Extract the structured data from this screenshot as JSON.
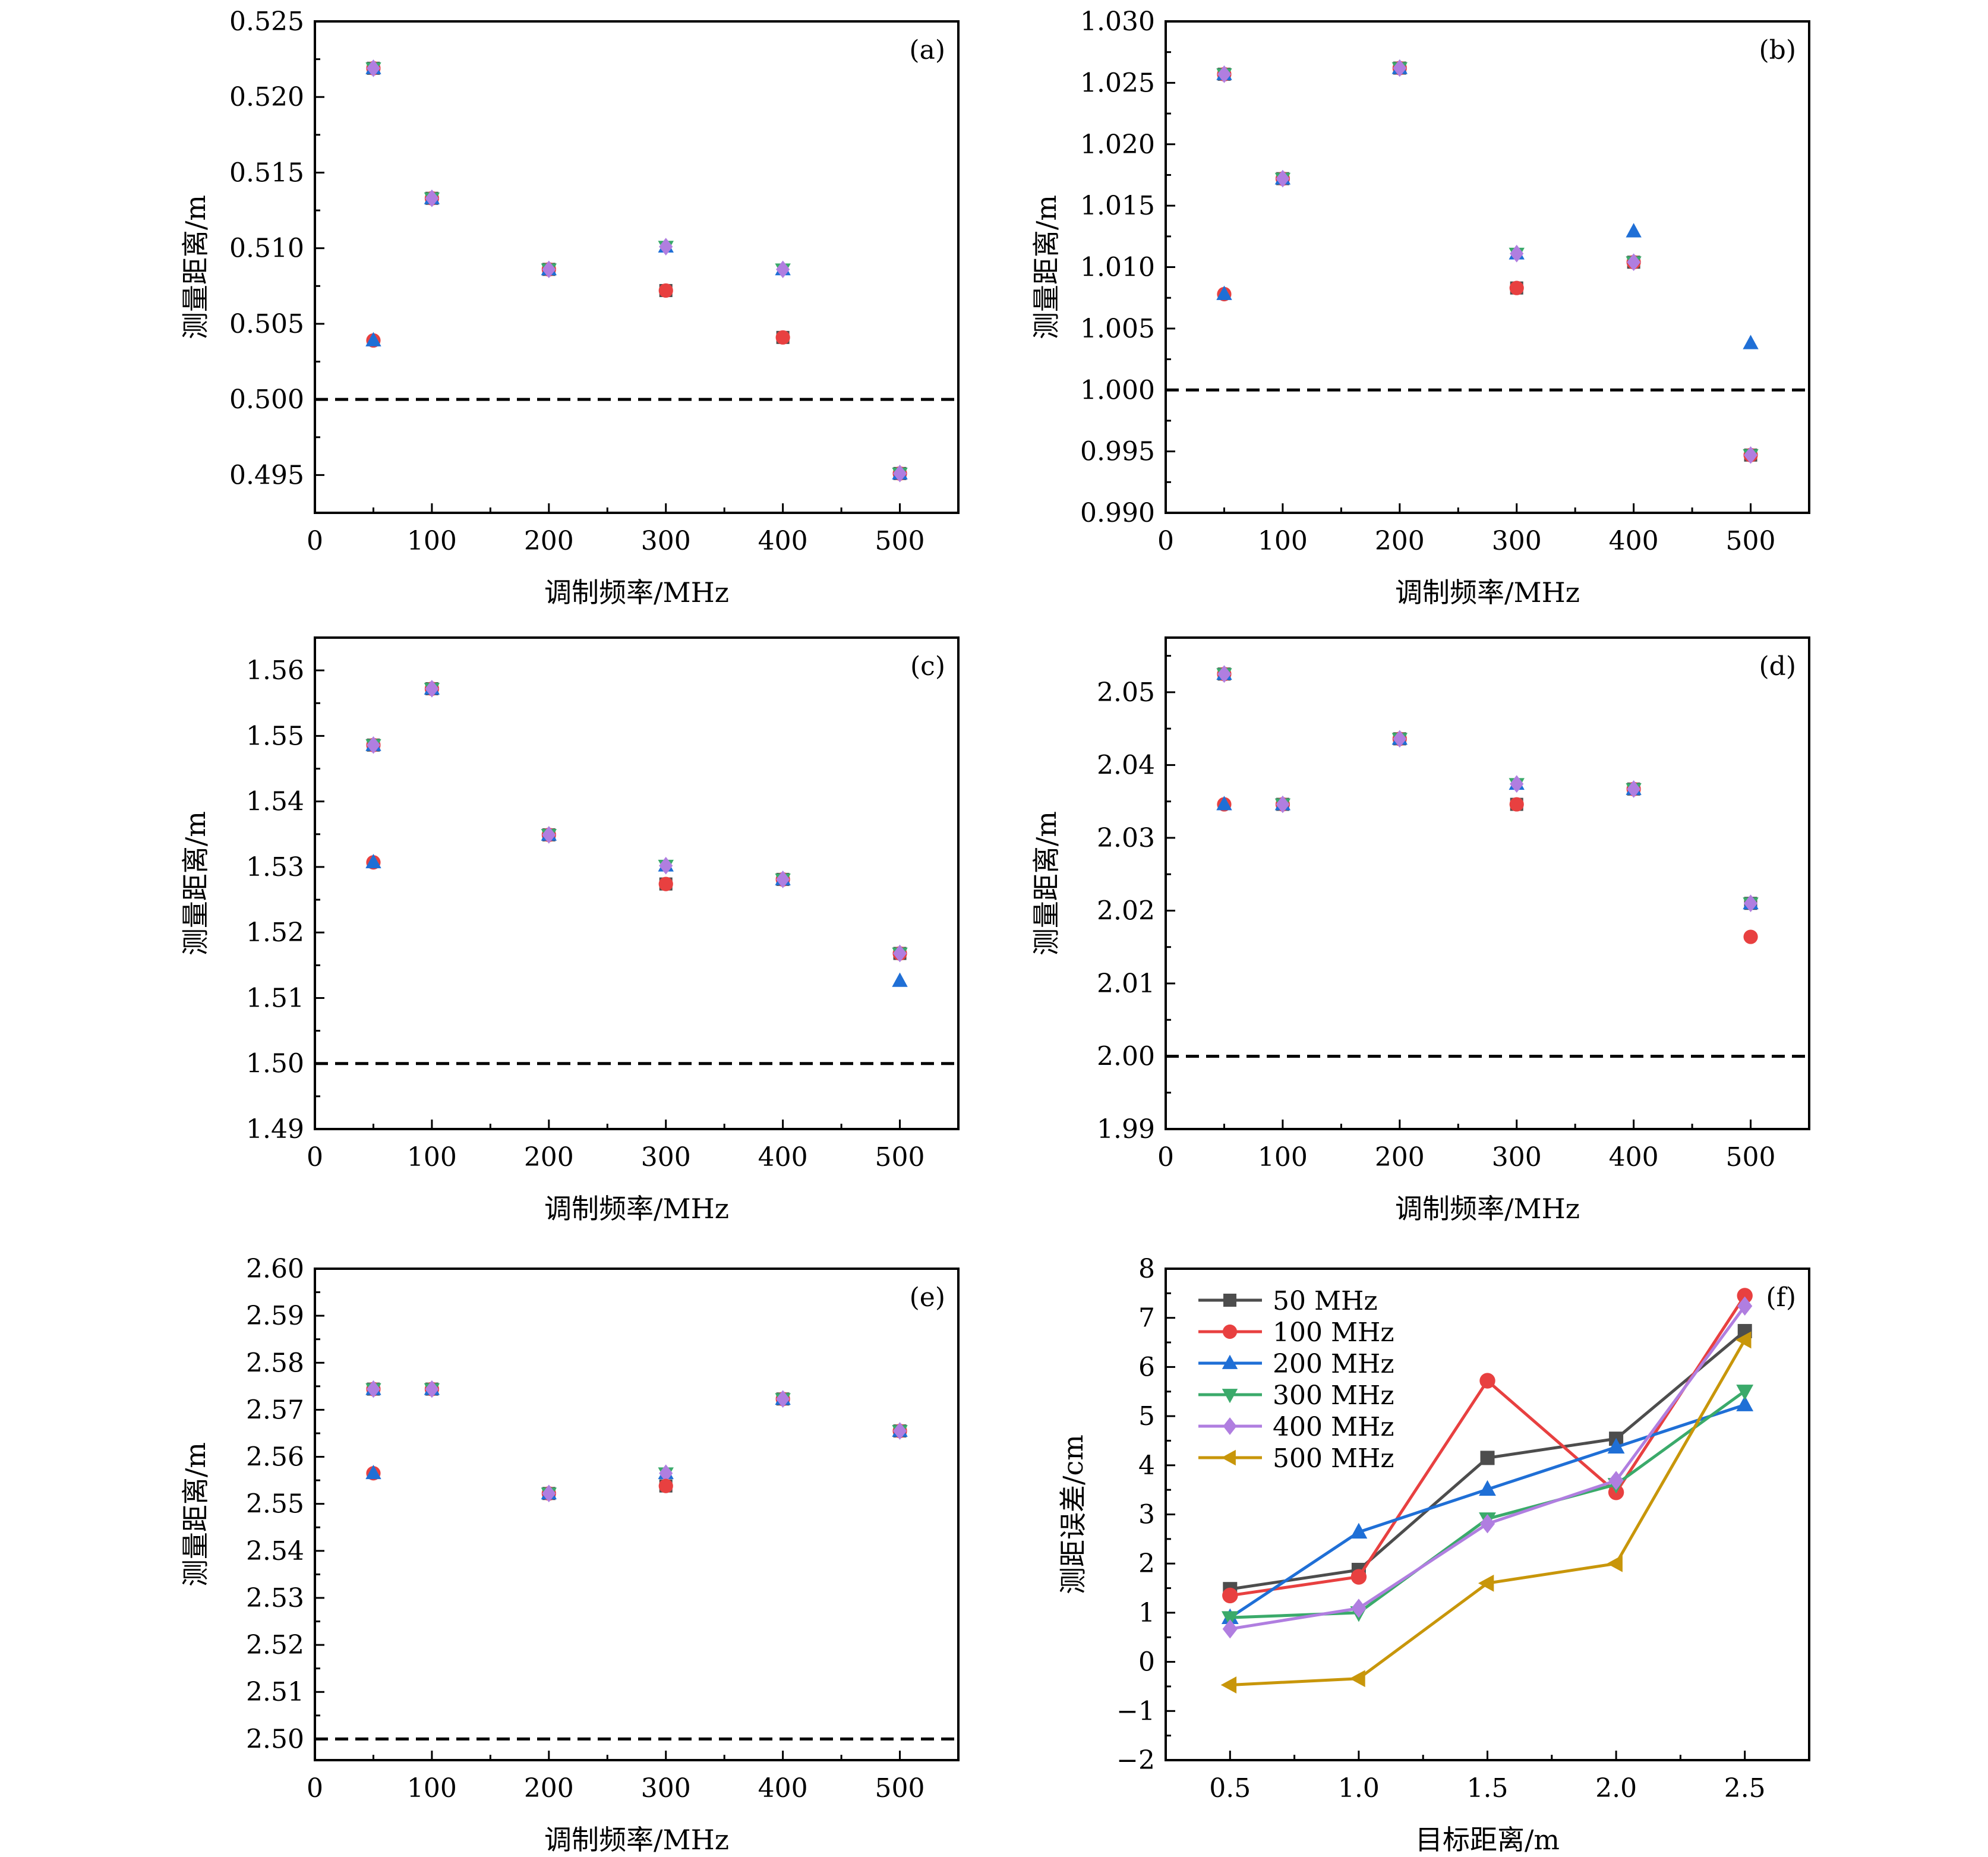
{
  "figure": {
    "marker_colors": {
      "50 MHz": "#4d4d4d",
      "100 MHz": "#e84040",
      "200 MHz": "#1f6fd6",
      "300 MHz": "#3aaa6a",
      "400 MHz": "#b07ee0",
      "500 MHz": "#c8960a"
    },
    "reference_line_color": "#000000"
  },
  "chart_data": [
    {
      "id": "a",
      "type": "scatter",
      "tag": "(a)",
      "xlabel": "调制频率/MHz",
      "ylabel": "测量距离/m",
      "xlim": [
        0,
        550
      ],
      "ylim": [
        0.4925,
        0.525
      ],
      "xticks": [
        0,
        100,
        200,
        300,
        400,
        500
      ],
      "xtick_labels": [
        "0",
        "100",
        "200",
        "300",
        "400",
        "500"
      ],
      "yticks": [
        0.495,
        0.5,
        0.505,
        0.51,
        0.515,
        0.52,
        0.525
      ],
      "ytick_labels": [
        "0.495",
        "0.500",
        "0.505",
        "0.510",
        "0.515",
        "0.520",
        "0.525"
      ],
      "reference_y": 0.5,
      "points": [
        {
          "x": 50,
          "y": 0.5219,
          "markers": [
            "square",
            "circle",
            "triangle-up",
            "triangle-down",
            "diamond"
          ]
        },
        {
          "x": 50,
          "y": 0.5039,
          "markers": [
            "circle",
            "triangle-up"
          ]
        },
        {
          "x": 100,
          "y": 0.5133,
          "markers": [
            "square",
            "circle",
            "triangle-up",
            "triangle-down",
            "diamond"
          ]
        },
        {
          "x": 200,
          "y": 0.5086,
          "markers": [
            "square",
            "circle",
            "triangle-up",
            "triangle-down",
            "diamond"
          ]
        },
        {
          "x": 300,
          "y": 0.5101,
          "markers": [
            "triangle-up",
            "triangle-down",
            "diamond"
          ]
        },
        {
          "x": 300,
          "y": 0.5072,
          "markers": [
            "square",
            "circle"
          ]
        },
        {
          "x": 400,
          "y": 0.5086,
          "markers": [
            "triangle-up",
            "triangle-down",
            "diamond"
          ]
        },
        {
          "x": 400,
          "y": 0.5041,
          "markers": [
            "square",
            "circle"
          ]
        },
        {
          "x": 500,
          "y": 0.4951,
          "markers": [
            "square",
            "circle",
            "triangle-up",
            "triangle-down",
            "diamond"
          ]
        }
      ]
    },
    {
      "id": "b",
      "type": "scatter",
      "tag": "(b)",
      "xlabel": "调制频率/MHz",
      "ylabel": "测量距离/m",
      "xlim": [
        0,
        550
      ],
      "ylim": [
        0.99,
        1.03
      ],
      "xticks": [
        0,
        100,
        200,
        300,
        400,
        500
      ],
      "xtick_labels": [
        "0",
        "100",
        "200",
        "300",
        "400",
        "500"
      ],
      "yticks": [
        0.99,
        0.995,
        1.0,
        1.005,
        1.01,
        1.015,
        1.02,
        1.025,
        1.03
      ],
      "ytick_labels": [
        "0.990",
        "0.995",
        "1.000",
        "1.005",
        "1.010",
        "1.015",
        "1.020",
        "1.025",
        "1.030"
      ],
      "reference_y": 1.0,
      "points": [
        {
          "x": 50,
          "y": 1.0257,
          "markers": [
            "square",
            "circle",
            "triangle-up",
            "triangle-down",
            "diamond"
          ]
        },
        {
          "x": 50,
          "y": 1.0078,
          "markers": [
            "circle",
            "triangle-up"
          ]
        },
        {
          "x": 100,
          "y": 1.0172,
          "markers": [
            "square",
            "circle",
            "triangle-up",
            "triangle-down",
            "diamond"
          ]
        },
        {
          "x": 200,
          "y": 1.0262,
          "markers": [
            "square",
            "circle",
            "triangle-up",
            "triangle-down",
            "diamond"
          ]
        },
        {
          "x": 300,
          "y": 1.0111,
          "markers": [
            "triangle-up",
            "triangle-down",
            "diamond"
          ]
        },
        {
          "x": 300,
          "y": 1.0083,
          "markers": [
            "square",
            "circle"
          ]
        },
        {
          "x": 400,
          "y": 1.0129,
          "markers": [
            "triangle-up"
          ]
        },
        {
          "x": 400,
          "y": 1.0104,
          "markers": [
            "square",
            "circle",
            "triangle-down",
            "diamond"
          ]
        },
        {
          "x": 500,
          "y": 1.0038,
          "markers": [
            "triangle-up"
          ]
        },
        {
          "x": 500,
          "y": 0.9947,
          "markers": [
            "square",
            "circle",
            "triangle-down",
            "diamond"
          ]
        }
      ]
    },
    {
      "id": "c",
      "type": "scatter",
      "tag": "(c)",
      "xlabel": "调制频率/MHz",
      "ylabel": "测量距离/m",
      "xlim": [
        0,
        550
      ],
      "ylim": [
        1.49,
        1.565
      ],
      "xticks": [
        0,
        100,
        200,
        300,
        400,
        500
      ],
      "xtick_labels": [
        "0",
        "100",
        "200",
        "300",
        "400",
        "500"
      ],
      "yticks": [
        1.49,
        1.5,
        1.51,
        1.52,
        1.53,
        1.54,
        1.55,
        1.56
      ],
      "ytick_labels": [
        "1.49",
        "1.50",
        "1.51",
        "1.52",
        "1.53",
        "1.54",
        "1.55",
        "1.56"
      ],
      "reference_y": 1.5,
      "points": [
        {
          "x": 50,
          "y": 1.5486,
          "markers": [
            "square",
            "circle",
            "triangle-up",
            "triangle-down",
            "diamond"
          ]
        },
        {
          "x": 50,
          "y": 1.5307,
          "markers": [
            "circle",
            "triangle-up"
          ]
        },
        {
          "x": 100,
          "y": 1.5572,
          "markers": [
            "square",
            "circle",
            "triangle-up",
            "triangle-down",
            "diamond"
          ]
        },
        {
          "x": 200,
          "y": 1.5349,
          "markers": [
            "square",
            "circle",
            "triangle-up",
            "triangle-down",
            "diamond"
          ]
        },
        {
          "x": 300,
          "y": 1.5302,
          "markers": [
            "triangle-up",
            "triangle-down",
            "diamond"
          ]
        },
        {
          "x": 300,
          "y": 1.5274,
          "markers": [
            "square",
            "circle"
          ]
        },
        {
          "x": 400,
          "y": 1.5281,
          "markers": [
            "square",
            "circle",
            "triangle-up",
            "triangle-down",
            "diamond"
          ]
        },
        {
          "x": 500,
          "y": 1.5168,
          "markers": [
            "square",
            "circle",
            "triangle-down",
            "diamond"
          ]
        },
        {
          "x": 500,
          "y": 1.5126,
          "markers": [
            "triangle-up"
          ]
        }
      ]
    },
    {
      "id": "d",
      "type": "scatter",
      "tag": "(d)",
      "xlabel": "调制频率/MHz",
      "ylabel": "测量距离/m",
      "xlim": [
        0,
        550
      ],
      "ylim": [
        1.99,
        2.0575
      ],
      "xticks": [
        0,
        100,
        200,
        300,
        400,
        500
      ],
      "xtick_labels": [
        "0",
        "100",
        "200",
        "300",
        "400",
        "500"
      ],
      "yticks": [
        1.99,
        2.0,
        2.01,
        2.02,
        2.03,
        2.04,
        2.05
      ],
      "ytick_labels": [
        "1.99",
        "2.00",
        "2.01",
        "2.02",
        "2.03",
        "2.04",
        "2.05"
      ],
      "reference_y": 2.0,
      "points": [
        {
          "x": 50,
          "y": 2.0525,
          "markers": [
            "square",
            "circle",
            "triangle-up",
            "triangle-down",
            "diamond"
          ]
        },
        {
          "x": 50,
          "y": 2.0346,
          "markers": [
            "circle",
            "triangle-up"
          ]
        },
        {
          "x": 100,
          "y": 2.0346,
          "markers": [
            "square",
            "circle",
            "triangle-up",
            "triangle-down",
            "diamond"
          ]
        },
        {
          "x": 200,
          "y": 2.0436,
          "markers": [
            "square",
            "circle",
            "triangle-up",
            "triangle-down",
            "diamond"
          ]
        },
        {
          "x": 300,
          "y": 2.0374,
          "markers": [
            "triangle-up",
            "triangle-down",
            "diamond"
          ]
        },
        {
          "x": 300,
          "y": 2.0346,
          "markers": [
            "square",
            "circle"
          ]
        },
        {
          "x": 400,
          "y": 2.0367,
          "markers": [
            "square",
            "circle",
            "triangle-up",
            "triangle-down",
            "diamond"
          ]
        },
        {
          "x": 500,
          "y": 2.021,
          "markers": [
            "square",
            "triangle-up",
            "triangle-down",
            "diamond"
          ]
        },
        {
          "x": 500,
          "y": 2.0164,
          "markers": [
            "circle"
          ]
        }
      ]
    },
    {
      "id": "e",
      "type": "scatter",
      "tag": "(e)",
      "xlabel": "调制频率/MHz",
      "ylabel": "测量距离/m",
      "xlim": [
        0,
        550
      ],
      "ylim": [
        2.4955,
        2.6
      ],
      "xticks": [
        0,
        100,
        200,
        300,
        400,
        500
      ],
      "xtick_labels": [
        "0",
        "100",
        "200",
        "300",
        "400",
        "500"
      ],
      "yticks": [
        2.5,
        2.51,
        2.52,
        2.53,
        2.54,
        2.55,
        2.56,
        2.57,
        2.58,
        2.59,
        2.6
      ],
      "ytick_labels": [
        "2.50",
        "2.51",
        "2.52",
        "2.53",
        "2.54",
        "2.55",
        "2.56",
        "2.57",
        "2.58",
        "2.59",
        "2.60"
      ],
      "reference_y": 2.5,
      "points": [
        {
          "x": 50,
          "y": 2.5744,
          "markers": [
            "square",
            "circle",
            "triangle-up",
            "triangle-down",
            "diamond"
          ]
        },
        {
          "x": 50,
          "y": 2.5565,
          "markers": [
            "circle",
            "triangle-up"
          ]
        },
        {
          "x": 100,
          "y": 2.5744,
          "markers": [
            "square",
            "circle",
            "triangle-up",
            "triangle-down",
            "diamond"
          ]
        },
        {
          "x": 200,
          "y": 2.5522,
          "markers": [
            "square",
            "circle",
            "triangle-up",
            "triangle-down",
            "diamond"
          ]
        },
        {
          "x": 300,
          "y": 2.5565,
          "markers": [
            "triangle-up",
            "triangle-down",
            "diamond"
          ]
        },
        {
          "x": 300,
          "y": 2.5538,
          "markers": [
            "square",
            "circle"
          ]
        },
        {
          "x": 400,
          "y": 2.5723,
          "markers": [
            "square",
            "circle",
            "triangle-up",
            "triangle-down",
            "diamond"
          ]
        },
        {
          "x": 500,
          "y": 2.5655,
          "markers": [
            "square",
            "circle",
            "triangle-up",
            "triangle-down",
            "diamond"
          ]
        }
      ]
    },
    {
      "id": "f",
      "type": "line",
      "tag": "(f)",
      "xlabel": "目标距离/m",
      "ylabel": "测距误差/cm",
      "xlim": [
        0.25,
        2.75
      ],
      "ylim": [
        -2,
        8
      ],
      "xticks": [
        0.5,
        1.0,
        1.5,
        2.0,
        2.5
      ],
      "xtick_labels": [
        "0.5",
        "1.0",
        "1.5",
        "2.0",
        "2.5"
      ],
      "yticks": [
        -2,
        -1,
        0,
        1,
        2,
        3,
        4,
        5,
        6,
        7,
        8
      ],
      "ytick_labels": [
        "−2",
        "−1",
        "0",
        "1",
        "2",
        "3",
        "4",
        "5",
        "6",
        "7",
        "8"
      ],
      "legend_position": "top-left",
      "x": [
        0.5,
        1.0,
        1.5,
        2.0,
        2.5
      ],
      "series": [
        {
          "name": "50 MHz",
          "marker": "square",
          "values": [
            1.48,
            1.87,
            4.15,
            4.54,
            6.73
          ]
        },
        {
          "name": "100 MHz",
          "marker": "circle",
          "values": [
            1.35,
            1.73,
            5.72,
            3.45,
            7.45
          ]
        },
        {
          "name": "200 MHz",
          "marker": "triangle-up",
          "values": [
            0.9,
            2.64,
            3.51,
            4.37,
            5.23
          ]
        },
        {
          "name": "300 MHz",
          "marker": "triangle-down",
          "values": [
            0.9,
            1.0,
            2.91,
            3.61,
            5.51
          ]
        },
        {
          "name": "400 MHz",
          "marker": "diamond",
          "values": [
            0.67,
            1.09,
            2.81,
            3.69,
            7.24
          ]
        },
        {
          "name": "500 MHz",
          "marker": "triangle-left",
          "values": [
            -0.47,
            -0.34,
            1.6,
            2.0,
            6.55
          ]
        }
      ]
    }
  ]
}
